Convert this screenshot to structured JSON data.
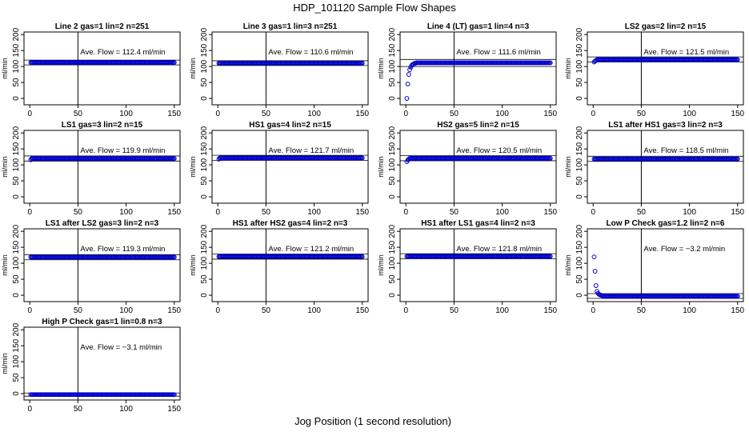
{
  "suptitle": "HDP_101120  Sample Flow Shapes",
  "xlabel": "Jog Position (1 second resolution)",
  "ylabel": "ml/min",
  "annotation_prefix": "Ave. Flow =",
  "annotation_unit": "ml/min",
  "colors": {
    "points": "#0000cc",
    "axis": "#000000"
  },
  "chart_data": [
    {
      "type": "scatter",
      "title": "Line 2 gas=1 lin=2 n=251",
      "ave_flow": "112.4",
      "level": 112.4,
      "vline": 50,
      "hlines": [
        105,
        120
      ],
      "xlim": [
        0,
        150
      ],
      "ylim": [
        0,
        200
      ],
      "xticks": [
        0,
        50,
        100,
        150
      ],
      "yticks": [
        0,
        50,
        100,
        150,
        200
      ],
      "shape": "flat",
      "start": []
    },
    {
      "type": "scatter",
      "title": "Line 3 gas=1 lin=3 n=251",
      "ave_flow": "110.6",
      "level": 110.6,
      "vline": 50,
      "hlines": [
        103,
        118
      ],
      "xlim": [
        0,
        150
      ],
      "ylim": [
        0,
        200
      ],
      "xticks": [
        0,
        50,
        100,
        150
      ],
      "yticks": [
        0,
        50,
        100,
        150,
        200
      ],
      "shape": "flat",
      "start": []
    },
    {
      "type": "scatter",
      "title": "Line 4 (LT) gas=1 lin=4 n=3",
      "ave_flow": "111.6",
      "level": 111.6,
      "vline": 50,
      "hlines": [
        100,
        122
      ],
      "xlim": [
        0,
        150
      ],
      "ylim": [
        0,
        200
      ],
      "xticks": [
        0,
        50,
        100,
        150
      ],
      "yticks": [
        0,
        50,
        100,
        150,
        200
      ],
      "shape": "ramp",
      "start": [
        [
          1,
          0
        ],
        [
          2,
          45
        ],
        [
          3,
          75
        ],
        [
          4,
          90
        ],
        [
          5,
          98
        ],
        [
          6,
          103
        ],
        [
          7,
          106
        ],
        [
          8,
          108
        ],
        [
          9,
          110
        ],
        [
          10,
          110
        ]
      ]
    },
    {
      "type": "scatter",
      "title": "LS2 gas=2 lin=2 n=15",
      "ave_flow": "121.5",
      "level": 121.5,
      "vline": 50,
      "hlines": [
        114,
        130
      ],
      "xlim": [
        0,
        150
      ],
      "ylim": [
        0,
        200
      ],
      "xticks": [
        0,
        50,
        100,
        150
      ],
      "yticks": [
        0,
        50,
        100,
        150,
        200
      ],
      "shape": "flat",
      "start": [
        [
          1,
          114
        ],
        [
          2,
          117
        ],
        [
          3,
          119
        ]
      ]
    },
    {
      "type": "scatter",
      "title": "LS1 gas=3 lin=2 n=15",
      "ave_flow": "119.9",
      "level": 119.9,
      "vline": 50,
      "hlines": [
        112,
        128
      ],
      "xlim": [
        0,
        150
      ],
      "ylim": [
        0,
        200
      ],
      "xticks": [
        0,
        50,
        100,
        150
      ],
      "yticks": [
        0,
        50,
        100,
        150,
        200
      ],
      "shape": "flat",
      "start": [
        [
          1,
          116
        ]
      ]
    },
    {
      "type": "scatter",
      "title": "HS1 gas=4 lin=2 n=15",
      "ave_flow": "121.7",
      "level": 121.7,
      "vline": 50,
      "hlines": [
        114,
        130
      ],
      "xlim": [
        0,
        150
      ],
      "ylim": [
        0,
        200
      ],
      "xticks": [
        0,
        50,
        100,
        150
      ],
      "yticks": [
        0,
        50,
        100,
        150,
        200
      ],
      "shape": "flat",
      "start": [
        [
          1,
          118
        ]
      ]
    },
    {
      "type": "scatter",
      "title": "HS2 gas=5 lin=2 n=15",
      "ave_flow": "120.5",
      "level": 120.5,
      "vline": 50,
      "hlines": [
        113,
        129
      ],
      "xlim": [
        0,
        150
      ],
      "ylim": [
        0,
        200
      ],
      "xticks": [
        0,
        50,
        100,
        150
      ],
      "yticks": [
        0,
        50,
        100,
        150,
        200
      ],
      "shape": "flat",
      "start": [
        [
          1,
          110
        ],
        [
          2,
          115
        ],
        [
          3,
          118
        ]
      ]
    },
    {
      "type": "scatter",
      "title": "LS1 after HS1 gas=3 lin=2 n=3",
      "ave_flow": "118.5",
      "level": 118.5,
      "vline": 50,
      "hlines": [
        111,
        127
      ],
      "xlim": [
        0,
        150
      ],
      "ylim": [
        0,
        200
      ],
      "xticks": [
        0,
        50,
        100,
        150
      ],
      "yticks": [
        0,
        50,
        100,
        150,
        200
      ],
      "shape": "flat",
      "start": []
    },
    {
      "type": "scatter",
      "title": "LS1 after LS2 gas=3 lin=2 n=3",
      "ave_flow": "119.3",
      "level": 119.3,
      "vline": 50,
      "hlines": [
        111,
        127
      ],
      "xlim": [
        0,
        150
      ],
      "ylim": [
        0,
        200
      ],
      "xticks": [
        0,
        50,
        100,
        150
      ],
      "yticks": [
        0,
        50,
        100,
        150,
        200
      ],
      "shape": "flat",
      "start": []
    },
    {
      "type": "scatter",
      "title": "HS1 after HS2 gas=4 lin=2 n=3",
      "ave_flow": "121.2",
      "level": 121.2,
      "vline": 50,
      "hlines": [
        113,
        129
      ],
      "xlim": [
        0,
        150
      ],
      "ylim": [
        0,
        200
      ],
      "xticks": [
        0,
        50,
        100,
        150
      ],
      "yticks": [
        0,
        50,
        100,
        150,
        200
      ],
      "shape": "flat",
      "start": []
    },
    {
      "type": "scatter",
      "title": "HS1 after LS1 gas=4 lin=2 n=3",
      "ave_flow": "121.8",
      "level": 121.8,
      "vline": 50,
      "hlines": [
        114,
        130
      ],
      "xlim": [
        0,
        150
      ],
      "ylim": [
        0,
        200
      ],
      "xticks": [
        0,
        50,
        100,
        150
      ],
      "yticks": [
        0,
        50,
        100,
        150,
        200
      ],
      "shape": "flat",
      "start": []
    },
    {
      "type": "scatter",
      "title": "Low P Check gas=1.2 lin=2 n=6",
      "ave_flow": "−3.2",
      "level": -3.2,
      "vline": 50,
      "hlines": [
        -10,
        5
      ],
      "xlim": [
        0,
        150
      ],
      "ylim": [
        0,
        200
      ],
      "xticks": [
        0,
        50,
        100,
        150
      ],
      "yticks": [
        0,
        50,
        100,
        150,
        200
      ],
      "shape": "decay",
      "start": [
        [
          1,
          120
        ],
        [
          2,
          75
        ],
        [
          3,
          30
        ],
        [
          4,
          12
        ],
        [
          5,
          6
        ],
        [
          6,
          3
        ],
        [
          7,
          1
        ],
        [
          8,
          0
        ],
        [
          9,
          -1
        ],
        [
          10,
          -2
        ]
      ]
    },
    {
      "type": "scatter",
      "title": "High P Check gas=1 lin=0.8 n=3",
      "ave_flow": "−3.1",
      "level": -3.1,
      "vline": 50,
      "hlines": [
        -8,
        2
      ],
      "xlim": [
        0,
        150
      ],
      "ylim": [
        0,
        200
      ],
      "xticks": [
        0,
        50,
        100,
        150
      ],
      "yticks": [
        0,
        50,
        100,
        150,
        200
      ],
      "shape": "flat",
      "start": []
    }
  ]
}
